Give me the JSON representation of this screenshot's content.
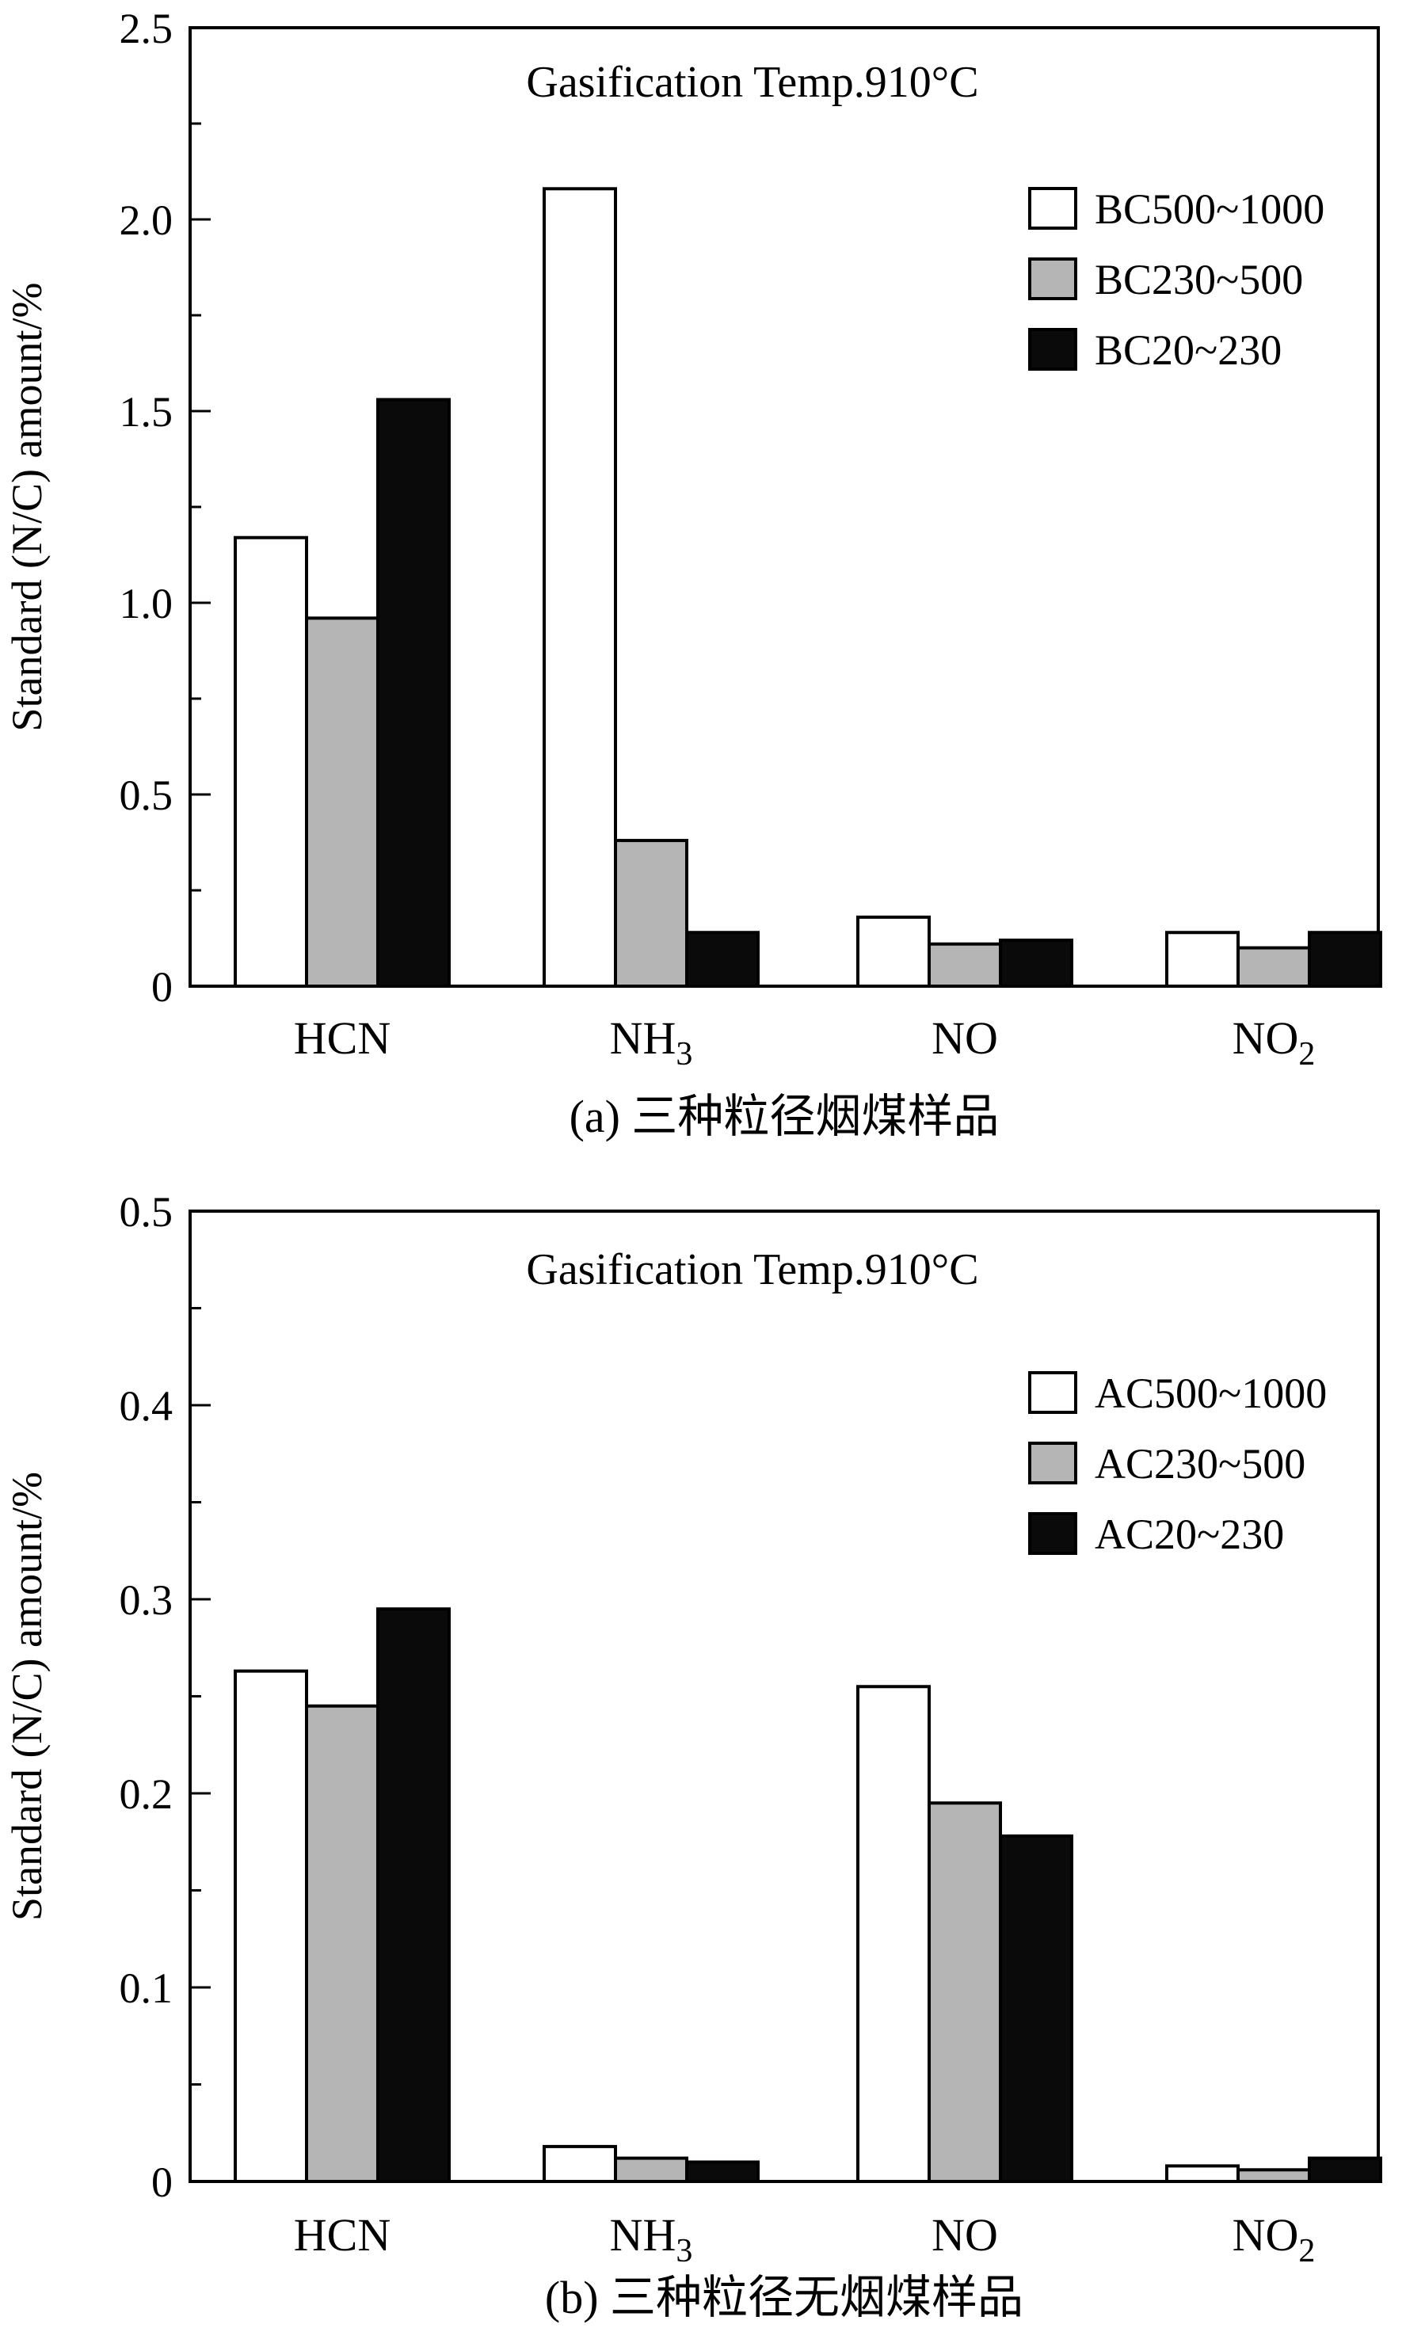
{
  "colors": {
    "background": "#ffffff",
    "axis": "#000000",
    "bar_border": "#000000",
    "bar_white": "#ffffff",
    "bar_gray": "#b5b5b5",
    "bar_black": "#0a0a0a"
  },
  "chart_data": [
    {
      "type": "bar",
      "panel": "a",
      "title": "Gasification Temp.910°C",
      "ylabel": "Standard (N/C) amount/%",
      "caption": "(a) 三种粒径烟煤样品",
      "categories": [
        {
          "base": "HCN",
          "sub": ""
        },
        {
          "base": "NH",
          "sub": "3"
        },
        {
          "base": "NO",
          "sub": ""
        },
        {
          "base": "NO",
          "sub": "2"
        }
      ],
      "ylim": [
        0,
        2.5
      ],
      "yticks": [
        "0",
        "0.5",
        "1.0",
        "1.5",
        "2.0",
        "2.5"
      ],
      "ytick_values": [
        0,
        0.5,
        1.0,
        1.5,
        2.0,
        2.5
      ],
      "grid": false,
      "legend_position": "top-right-inside",
      "series": [
        {
          "name": "BC500~1000",
          "fill": "#ffffff",
          "values": [
            1.17,
            2.08,
            0.18,
            0.14
          ]
        },
        {
          "name": "BC230~500",
          "fill": "#b5b5b5",
          "values": [
            0.96,
            0.38,
            0.11,
            0.1
          ]
        },
        {
          "name": "BC20~230",
          "fill": "#0a0a0a",
          "values": [
            1.53,
            0.14,
            0.12,
            0.14
          ]
        }
      ]
    },
    {
      "type": "bar",
      "panel": "b",
      "title": "Gasification Temp.910°C",
      "ylabel": "Standard (N/C) amount/%",
      "caption": "(b) 三种粒径无烟煤样品",
      "categories": [
        {
          "base": "HCN",
          "sub": ""
        },
        {
          "base": "NH",
          "sub": "3"
        },
        {
          "base": "NO",
          "sub": ""
        },
        {
          "base": "NO",
          "sub": "2"
        }
      ],
      "ylim": [
        0,
        0.5
      ],
      "yticks": [
        "0",
        "0.1",
        "0.2",
        "0.3",
        "0.4",
        "0.5"
      ],
      "ytick_values": [
        0,
        0.1,
        0.2,
        0.3,
        0.4,
        0.5
      ],
      "grid": false,
      "legend_position": "top-right-inside",
      "series": [
        {
          "name": "AC500~1000",
          "fill": "#ffffff",
          "values": [
            0.263,
            0.018,
            0.255,
            0.008
          ]
        },
        {
          "name": "AC230~500",
          "fill": "#b5b5b5",
          "values": [
            0.245,
            0.012,
            0.195,
            0.006
          ]
        },
        {
          "name": "AC20~230",
          "fill": "#0a0a0a",
          "values": [
            0.295,
            0.01,
            0.178,
            0.012
          ]
        }
      ]
    }
  ]
}
